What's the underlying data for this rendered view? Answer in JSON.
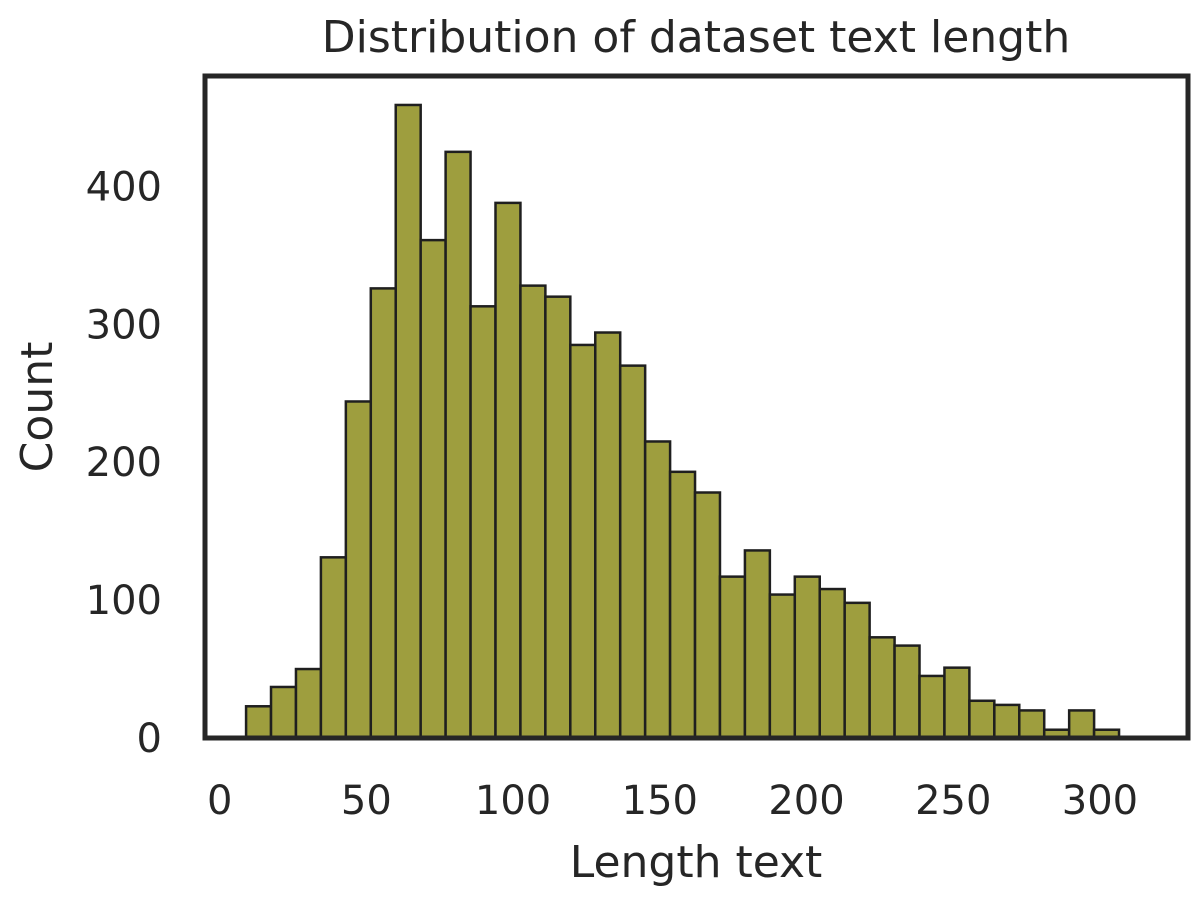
{
  "chart_data": {
    "type": "bar",
    "title": "Distribution of dataset text length",
    "xlabel": "Length text",
    "ylabel": "Count",
    "xlim": [
      -5,
      330
    ],
    "ylim": [
      0,
      480
    ],
    "xticks": [
      0,
      50,
      100,
      150,
      200,
      250,
      300
    ],
    "yticks": [
      0,
      100,
      200,
      300,
      400
    ],
    "grid": false,
    "bar_color": "#9e9e3e",
    "edge_color": "#1f1f1f",
    "bins": [
      {
        "x0": 9.0,
        "x1": 17.5,
        "count": 23
      },
      {
        "x0": 17.5,
        "x1": 26.0,
        "count": 37
      },
      {
        "x0": 26.0,
        "x1": 34.5,
        "count": 50
      },
      {
        "x0": 34.5,
        "x1": 43.0,
        "count": 131
      },
      {
        "x0": 43.0,
        "x1": 51.5,
        "count": 244
      },
      {
        "x0": 51.5,
        "x1": 60.0,
        "count": 326
      },
      {
        "x0": 60.0,
        "x1": 68.5,
        "count": 459
      },
      {
        "x0": 68.5,
        "x1": 77.0,
        "count": 361
      },
      {
        "x0": 77.0,
        "x1": 85.5,
        "count": 425
      },
      {
        "x0": 85.5,
        "x1": 94.0,
        "count": 313
      },
      {
        "x0": 94.0,
        "x1": 102.5,
        "count": 388
      },
      {
        "x0": 102.5,
        "x1": 111.0,
        "count": 328
      },
      {
        "x0": 111.0,
        "x1": 119.5,
        "count": 320
      },
      {
        "x0": 119.5,
        "x1": 128.0,
        "count": 285
      },
      {
        "x0": 128.0,
        "x1": 136.5,
        "count": 294
      },
      {
        "x0": 136.5,
        "x1": 145.0,
        "count": 270
      },
      {
        "x0": 145.0,
        "x1": 153.5,
        "count": 215
      },
      {
        "x0": 153.5,
        "x1": 162.0,
        "count": 193
      },
      {
        "x0": 162.0,
        "x1": 170.5,
        "count": 178
      },
      {
        "x0": 170.5,
        "x1": 179.0,
        "count": 117
      },
      {
        "x0": 179.0,
        "x1": 187.5,
        "count": 136
      },
      {
        "x0": 187.5,
        "x1": 196.0,
        "count": 104
      },
      {
        "x0": 196.0,
        "x1": 204.5,
        "count": 117
      },
      {
        "x0": 204.5,
        "x1": 213.0,
        "count": 108
      },
      {
        "x0": 213.0,
        "x1": 221.5,
        "count": 98
      },
      {
        "x0": 221.5,
        "x1": 230.0,
        "count": 73
      },
      {
        "x0": 230.0,
        "x1": 238.5,
        "count": 67
      },
      {
        "x0": 238.5,
        "x1": 247.0,
        "count": 45
      },
      {
        "x0": 247.0,
        "x1": 255.5,
        "count": 51
      },
      {
        "x0": 255.5,
        "x1": 264.0,
        "count": 27
      },
      {
        "x0": 264.0,
        "x1": 272.5,
        "count": 24
      },
      {
        "x0": 272.5,
        "x1": 281.0,
        "count": 20
      },
      {
        "x0": 281.0,
        "x1": 289.5,
        "count": 6
      },
      {
        "x0": 289.5,
        "x1": 298.0,
        "count": 20
      },
      {
        "x0": 298.0,
        "x1": 306.5,
        "count": 6
      }
    ]
  }
}
